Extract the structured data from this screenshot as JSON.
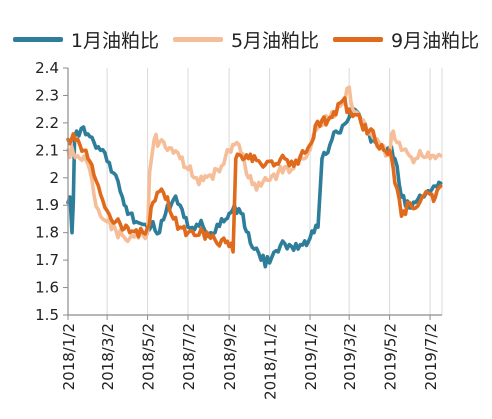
{
  "chart_data": {
    "type": "line",
    "title": "",
    "xlabel": "",
    "ylabel": "",
    "ylim": [
      1.5,
      2.4
    ],
    "yticks": [
      "2.4",
      "2.3",
      "2.2",
      "2.1",
      "2",
      "1.9",
      "1.8",
      "1.7",
      "1.6",
      "1.5"
    ],
    "x_tick_labels": [
      "2018/1/2",
      "2018/3/2",
      "2018/5/2",
      "2018/7/2",
      "2018/9/2",
      "2018/11/2",
      "2019/1/2",
      "2019/3/2",
      "2019/5/2",
      "2019/7/2"
    ],
    "grid": "vertical",
    "legend_position": "top",
    "series": [
      {
        "name": "1月油粕比",
        "color": "#2E7D9A",
        "x": [
          "2018-01-02",
          "2018-01-05",
          "2018-01-08",
          "2018-01-10",
          "2018-01-12",
          "2018-01-15",
          "2018-01-22",
          "2018-02-01",
          "2018-02-10",
          "2018-02-20",
          "2018-03-02",
          "2018-03-15",
          "2018-03-25",
          "2018-04-05",
          "2018-04-15",
          "2018-04-25",
          "2018-05-02",
          "2018-05-10",
          "2018-05-20",
          "2018-06-01",
          "2018-06-10",
          "2018-06-20",
          "2018-07-02",
          "2018-07-15",
          "2018-07-25",
          "2018-08-05",
          "2018-08-15",
          "2018-08-25",
          "2018-09-02",
          "2018-09-10",
          "2018-09-20",
          "2018-10-01",
          "2018-10-10",
          "2018-10-20",
          "2018-11-02",
          "2018-11-15",
          "2018-11-25",
          "2018-12-05",
          "2018-12-15",
          "2018-12-25",
          "2019-01-02",
          "2019-01-08",
          "2019-01-14",
          "2019-01-20",
          "2019-02-01",
          "2019-02-10",
          "2019-02-20",
          "2019-03-02",
          "2019-03-10",
          "2019-03-20",
          "2019-04-01",
          "2019-04-10",
          "2019-04-20",
          "2019-05-02",
          "2019-05-10",
          "2019-05-20",
          "2019-06-01",
          "2019-06-10",
          "2019-06-20",
          "2019-07-02",
          "2019-07-10",
          "2019-07-18"
        ],
        "y": [
          1.91,
          1.93,
          1.8,
          1.91,
          2.15,
          2.17,
          2.18,
          2.16,
          2.13,
          2.1,
          2.06,
          2.01,
          1.93,
          1.87,
          1.84,
          1.83,
          1.82,
          1.84,
          1.8,
          1.9,
          1.92,
          1.9,
          1.82,
          1.83,
          1.82,
          1.8,
          1.83,
          1.84,
          1.87,
          1.9,
          1.87,
          1.8,
          1.74,
          1.7,
          1.69,
          1.73,
          1.76,
          1.75,
          1.74,
          1.77,
          1.78,
          1.8,
          1.82,
          2.07,
          2.12,
          2.17,
          2.19,
          2.22,
          2.25,
          2.21,
          2.16,
          2.13,
          2.12,
          2.11,
          2.07,
          1.93,
          1.89,
          1.91,
          1.93,
          1.95,
          1.97,
          1.98
        ]
      },
      {
        "name": "5月油粕比",
        "color": "#F5BE98",
        "x": [
          "2018-01-02",
          "2018-01-10",
          "2018-01-20",
          "2018-02-01",
          "2018-02-10",
          "2018-02-20",
          "2018-03-02",
          "2018-03-15",
          "2018-03-25",
          "2018-04-05",
          "2018-04-15",
          "2018-04-25",
          "2018-05-02",
          "2018-05-05",
          "2018-05-12",
          "2018-05-20",
          "2018-06-01",
          "2018-06-10",
          "2018-06-20",
          "2018-07-02",
          "2018-07-15",
          "2018-07-25",
          "2018-08-05",
          "2018-08-15",
          "2018-08-25",
          "2018-09-02",
          "2018-09-10",
          "2018-09-20",
          "2018-10-01",
          "2018-10-10",
          "2018-10-20",
          "2018-11-02",
          "2018-11-15",
          "2018-11-25",
          "2018-12-05",
          "2018-12-15",
          "2018-12-25",
          "2019-01-02",
          "2019-01-10",
          "2019-01-20",
          "2019-02-01",
          "2019-02-10",
          "2019-02-20",
          "2019-03-02",
          "2019-03-10",
          "2019-03-20",
          "2019-04-01",
          "2019-04-10",
          "2019-04-20",
          "2019-05-02",
          "2019-05-05",
          "2019-05-10",
          "2019-05-20",
          "2019-06-01",
          "2019-06-10",
          "2019-06-20",
          "2019-07-02",
          "2019-07-10",
          "2019-07-18"
        ],
        "y": [
          2.1,
          2.09,
          2.07,
          2.05,
          1.94,
          1.86,
          1.84,
          1.81,
          1.79,
          1.78,
          1.8,
          1.79,
          1.8,
          2.02,
          2.14,
          2.13,
          2.1,
          2.09,
          2.07,
          2.03,
          2.0,
          1.99,
          2.01,
          2.03,
          2.05,
          2.1,
          2.12,
          2.09,
          2.0,
          1.98,
          1.97,
          1.99,
          2.02,
          2.04,
          2.03,
          2.06,
          2.07,
          2.1,
          2.17,
          2.19,
          2.22,
          2.23,
          2.27,
          2.33,
          2.24,
          2.2,
          2.16,
          2.14,
          2.12,
          2.08,
          2.16,
          2.14,
          2.1,
          2.08,
          2.07,
          2.08,
          2.07,
          2.07,
          2.08
        ]
      },
      {
        "name": "9月油粕比",
        "color": "#E06A1B",
        "x": [
          "2018-01-02",
          "2018-01-10",
          "2018-01-20",
          "2018-02-01",
          "2018-02-10",
          "2018-02-20",
          "2018-03-02",
          "2018-03-15",
          "2018-03-25",
          "2018-04-05",
          "2018-04-15",
          "2018-04-25",
          "2018-05-02",
          "2018-05-10",
          "2018-05-20",
          "2018-06-01",
          "2018-06-10",
          "2018-06-20",
          "2018-07-02",
          "2018-07-15",
          "2018-07-25",
          "2018-08-05",
          "2018-08-15",
          "2018-08-25",
          "2018-09-02",
          "2018-09-08",
          "2018-09-12",
          "2018-09-20",
          "2018-10-01",
          "2018-10-10",
          "2018-10-20",
          "2018-11-02",
          "2018-11-15",
          "2018-11-25",
          "2018-12-05",
          "2018-12-15",
          "2018-12-25",
          "2019-01-02",
          "2019-01-10",
          "2019-01-20",
          "2019-02-01",
          "2019-02-10",
          "2019-02-20",
          "2019-03-02",
          "2019-03-10",
          "2019-03-20",
          "2019-04-01",
          "2019-04-10",
          "2019-04-20",
          "2019-05-02",
          "2019-05-10",
          "2019-05-20",
          "2019-06-01",
          "2019-06-10",
          "2019-06-20",
          "2019-07-02",
          "2019-07-10",
          "2019-07-18"
        ],
        "y": [
          2.14,
          2.16,
          2.12,
          2.07,
          2.01,
          1.94,
          1.88,
          1.84,
          1.81,
          1.8,
          1.81,
          1.8,
          1.82,
          1.91,
          1.95,
          1.93,
          1.85,
          1.82,
          1.8,
          1.79,
          1.8,
          1.78,
          1.76,
          1.78,
          1.75,
          1.73,
          2.07,
          2.08,
          2.07,
          2.08,
          2.05,
          2.06,
          2.05,
          2.07,
          2.06,
          2.05,
          2.09,
          2.12,
          2.19,
          2.21,
          2.22,
          2.23,
          2.28,
          2.25,
          2.23,
          2.2,
          2.17,
          2.14,
          2.12,
          2.1,
          1.98,
          1.86,
          1.91,
          1.89,
          1.93,
          1.94,
          1.93,
          1.97
        ]
      }
    ]
  }
}
